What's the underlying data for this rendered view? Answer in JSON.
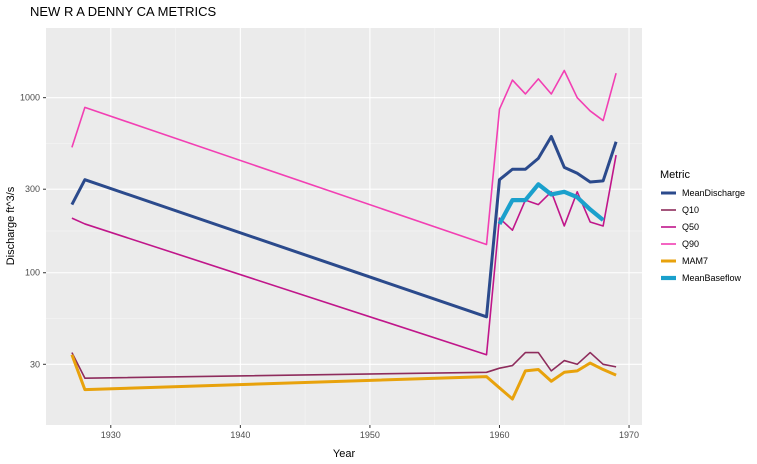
{
  "chart_data": {
    "type": "line",
    "title": "NEW R A DENNY CA  METRICS",
    "xlabel": "Year",
    "ylabel": "Discharge ft^3/s",
    "x_scale": "linear",
    "y_scale": "log10",
    "xlim": [
      1925,
      1971
    ],
    "ylim": [
      13.5,
      2500
    ],
    "x_ticks": [
      1930,
      1940,
      1950,
      1960,
      1970
    ],
    "y_ticks": [
      30,
      100,
      300,
      1000
    ],
    "grid": true,
    "legend_title": "Metric",
    "legend_position": "right",
    "series": [
      {
        "name": "MeanDischarge",
        "color": "#2b4a8c",
        "width": "thick",
        "points": [
          [
            1927,
            245
          ],
          [
            1928,
            340
          ],
          [
            1959,
            56
          ],
          [
            1960,
            340
          ],
          [
            1961,
            390
          ],
          [
            1962,
            390
          ],
          [
            1963,
            450
          ],
          [
            1964,
            600
          ],
          [
            1965,
            400
          ],
          [
            1966,
            370
          ],
          [
            1967,
            330
          ],
          [
            1968,
            335
          ],
          [
            1969,
            560
          ]
        ]
      },
      {
        "name": "Q10",
        "color": "#8e2c5c",
        "width": "normal",
        "points": [
          [
            1927,
            35
          ],
          [
            1928,
            25
          ],
          [
            1959,
            27
          ],
          [
            1960,
            28.5
          ],
          [
            1961,
            29.5
          ],
          [
            1962,
            35
          ],
          [
            1963,
            35
          ],
          [
            1964,
            27.5
          ],
          [
            1965,
            31.5
          ],
          [
            1966,
            30
          ],
          [
            1967,
            35
          ],
          [
            1968,
            30
          ],
          [
            1969,
            29
          ]
        ]
      },
      {
        "name": "Q50",
        "color": "#c0168a",
        "width": "normal",
        "points": [
          [
            1927,
            205
          ],
          [
            1928,
            190
          ],
          [
            1959,
            34
          ],
          [
            1960,
            205
          ],
          [
            1961,
            175
          ],
          [
            1962,
            260
          ],
          [
            1963,
            245
          ],
          [
            1964,
            290
          ],
          [
            1965,
            185
          ],
          [
            1966,
            290
          ],
          [
            1967,
            195
          ],
          [
            1968,
            185
          ],
          [
            1969,
            470
          ]
        ]
      },
      {
        "name": "Q90",
        "color": "#f23fb3",
        "width": "normal",
        "points": [
          [
            1927,
            520
          ],
          [
            1928,
            880
          ],
          [
            1959,
            145
          ],
          [
            1960,
            860
          ],
          [
            1961,
            1260
          ],
          [
            1962,
            1050
          ],
          [
            1963,
            1280
          ],
          [
            1964,
            1050
          ],
          [
            1965,
            1430
          ],
          [
            1966,
            1000
          ],
          [
            1967,
            840
          ],
          [
            1968,
            740
          ],
          [
            1969,
            1380
          ]
        ]
      },
      {
        "name": "MAM7",
        "color": "#e8a20c",
        "width": "thick",
        "points": [
          [
            1927,
            34
          ],
          [
            1928,
            21.5
          ],
          [
            1959,
            25.5
          ],
          [
            1960,
            22
          ],
          [
            1961,
            19
          ],
          [
            1962,
            27.5
          ],
          [
            1963,
            28
          ],
          [
            1964,
            24
          ],
          [
            1965,
            27
          ],
          [
            1966,
            27.5
          ],
          [
            1967,
            30.5
          ],
          [
            1968,
            28
          ],
          [
            1969,
            26
          ]
        ]
      },
      {
        "name": "MeanBaseflow",
        "color": "#1aa0cc",
        "width": "thicker",
        "points": [
          [
            1960,
            190
          ],
          [
            1961,
            260
          ],
          [
            1962,
            260
          ],
          [
            1963,
            320
          ],
          [
            1964,
            280
          ],
          [
            1965,
            290
          ],
          [
            1966,
            270
          ],
          [
            1967,
            230
          ],
          [
            1968,
            200
          ]
        ]
      }
    ]
  }
}
